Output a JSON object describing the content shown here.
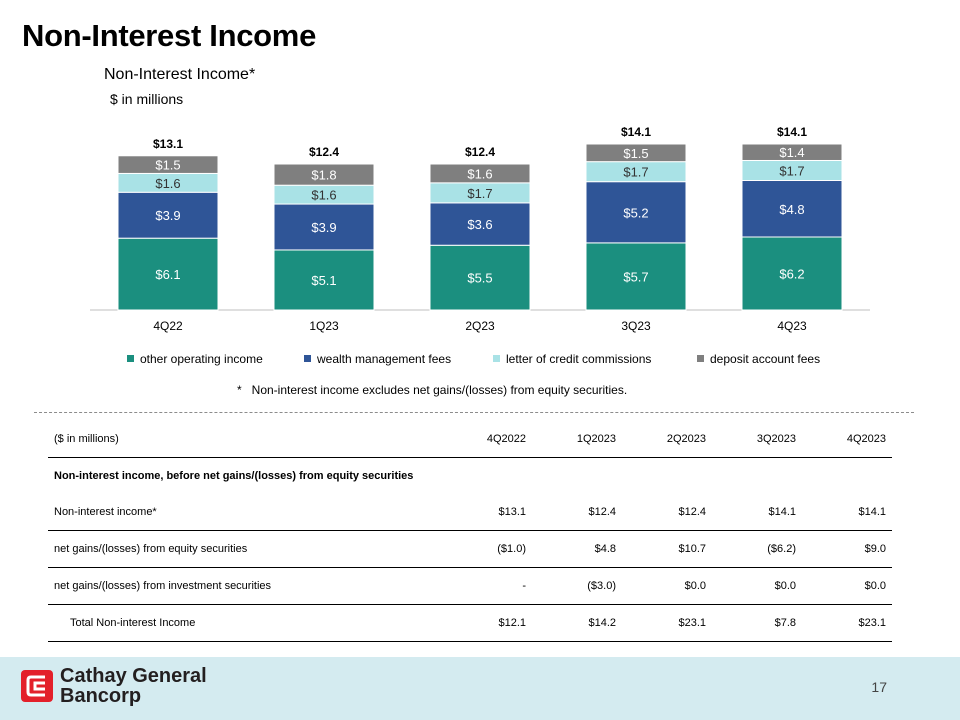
{
  "page": {
    "title": "Non-Interest Income",
    "number": "17"
  },
  "chart_data": {
    "type": "bar",
    "stacked": true,
    "title": "Non-Interest Income*",
    "subtitle": "$ in millions",
    "categories": [
      "4Q22",
      "1Q23",
      "2Q23",
      "3Q23",
      "4Q23"
    ],
    "series": [
      {
        "name": "other operating income",
        "color": "#1b8f7f",
        "values": [
          6.1,
          5.1,
          5.5,
          5.7,
          6.2
        ],
        "labels": [
          "$6.1",
          "$5.1",
          "$5.5",
          "$5.7",
          "$6.2"
        ]
      },
      {
        "name": "wealth management fees",
        "color": "#2f5597",
        "values": [
          3.9,
          3.9,
          3.6,
          5.2,
          4.8
        ],
        "labels": [
          "$3.9",
          "$3.9",
          "$3.6",
          "$5.2",
          "$4.8"
        ]
      },
      {
        "name": "letter of credit commissions",
        "color": "#a9e2e6",
        "values": [
          1.6,
          1.6,
          1.7,
          1.7,
          1.7
        ],
        "labels": [
          "$1.6",
          "$1.6",
          "$1.7",
          "$1.7",
          "$1.7"
        ]
      },
      {
        "name": "deposit account fees",
        "color": "#7f7f7f",
        "values": [
          1.5,
          1.8,
          1.6,
          1.5,
          1.4
        ],
        "labels": [
          "$1.5",
          "$1.8",
          "$1.6",
          "$1.5",
          "$1.4"
        ]
      }
    ],
    "totals": [
      13.1,
      12.4,
      12.4,
      14.1,
      14.1
    ],
    "total_labels": [
      "$13.1",
      "$12.4",
      "$12.4",
      "$14.1",
      "$14.1"
    ],
    "ylim": [
      0,
      14.1
    ],
    "legend_position": "bottom",
    "footnote_mark": "*",
    "footnote": "Non-interest income excludes net gains/(losses) from equity securities."
  },
  "table": {
    "headers": [
      "($ in millions)",
      "4Q2022",
      "1Q2023",
      "2Q2023",
      "3Q2023",
      "4Q2023"
    ],
    "section": "Non-interest income, before net gains/(losses) from equity securities",
    "rows": [
      {
        "label": "Non-interest income*",
        "values": [
          "$13.1",
          "$12.4",
          "$12.4",
          "$14.1",
          "$14.1"
        ]
      },
      {
        "label": "net gains/(losses) from equity securities",
        "values": [
          "($1.0)",
          "$4.8",
          "$10.7",
          "($6.2)",
          "$9.0"
        ]
      },
      {
        "label": "net gains/(losses) from investment securities",
        "values": [
          "-",
          "($3.0)",
          "$0.0",
          "$0.0",
          "$0.0"
        ]
      }
    ],
    "total": {
      "label": "Total Non-interest Income",
      "values": [
        "$12.1",
        "$14.2",
        "$23.1",
        "$7.8",
        "$23.1"
      ]
    }
  },
  "logo": {
    "line1": "Cathay General",
    "line2": "Bancorp",
    "color": "#e3202a"
  }
}
